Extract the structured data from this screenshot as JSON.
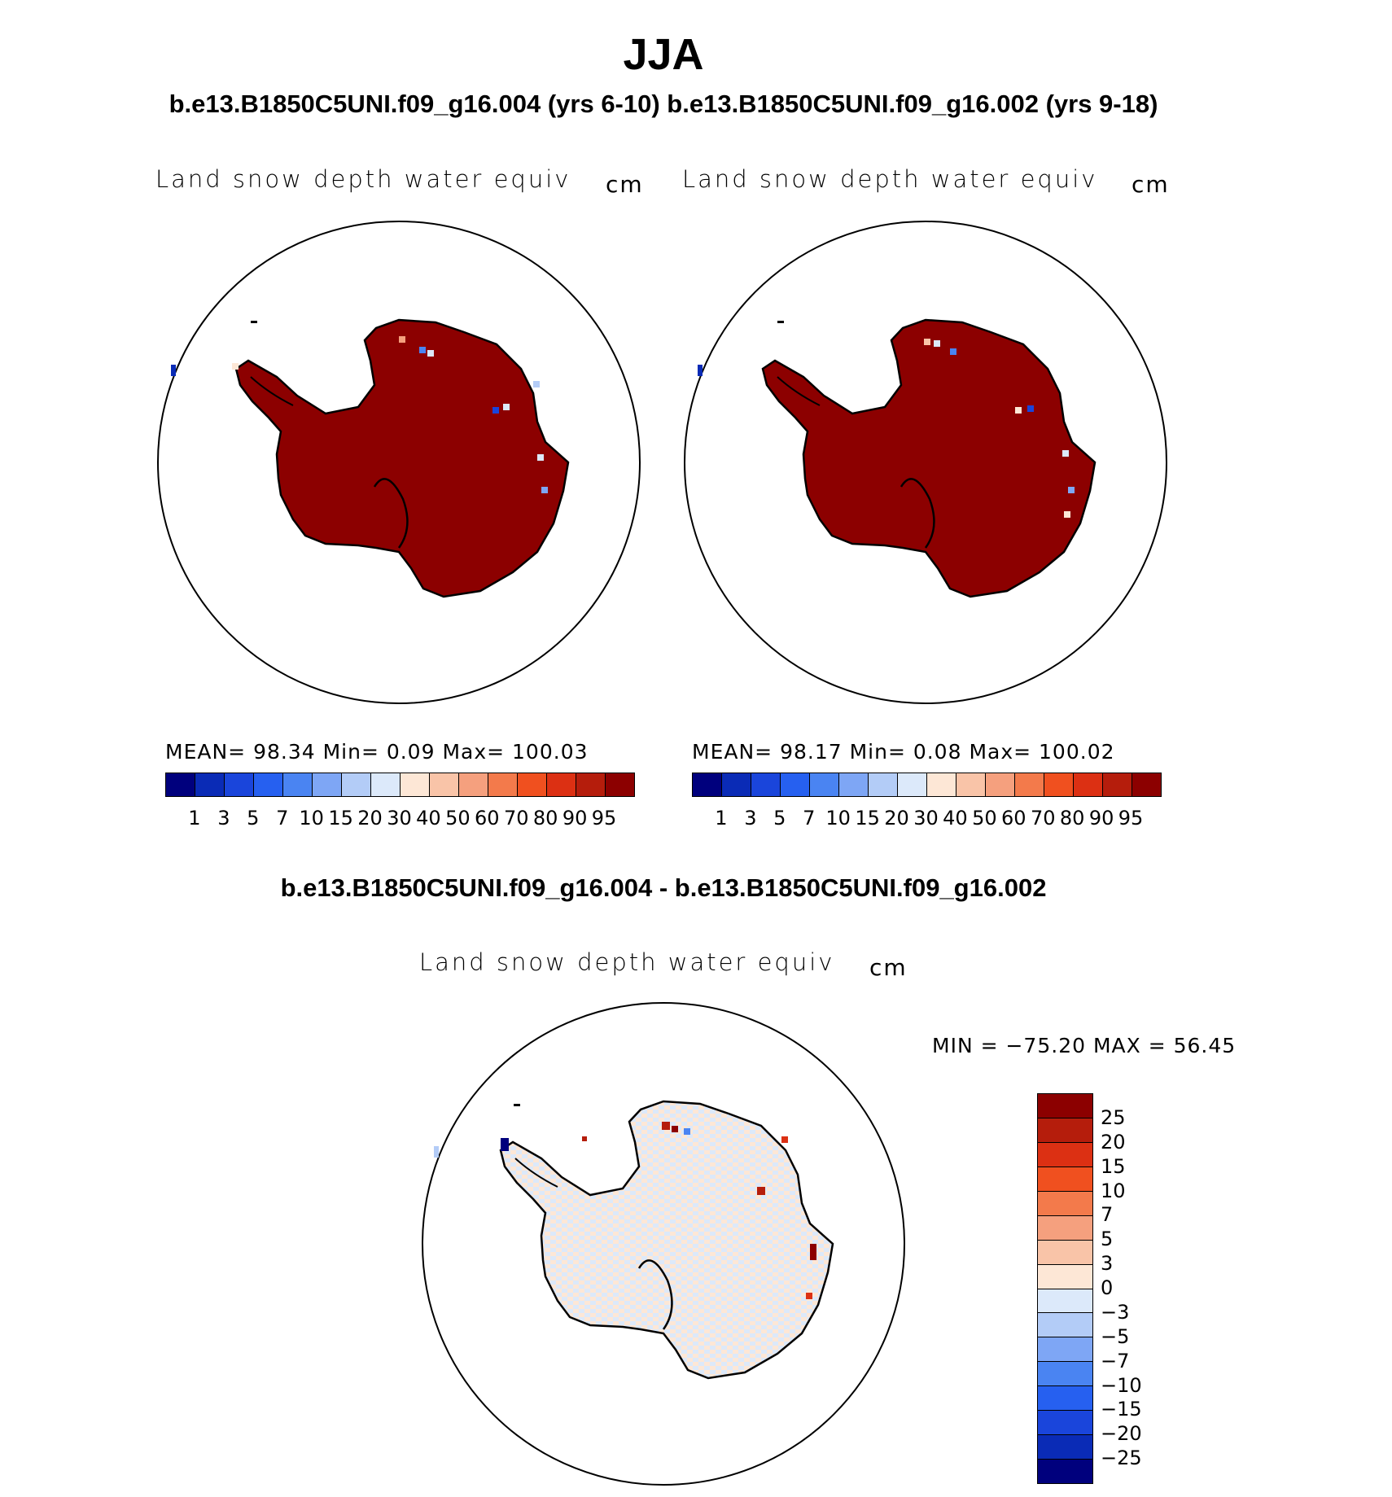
{
  "title": "JJA",
  "panel_header": "b.e13.B1850C5UNI.f09_g16.004 (yrs 6-10) b.e13.B1850C5UNI.f09_g16.002 (yrs 9-18)",
  "panels": [
    {
      "variable": "Land snow depth water equiv",
      "units": "cm",
      "stats": "MEAN=   98.34   Min=     0.09    Max=  100.03"
    },
    {
      "variable": "Land snow depth water equiv",
      "units": "cm",
      "stats": "MEAN=   98.17   Min=     0.08    Max=  100.02"
    }
  ],
  "abs_colorbar": {
    "labels": [
      "1",
      "3",
      "5",
      "7",
      "10",
      "15",
      "20",
      "30",
      "40",
      "50",
      "60",
      "70",
      "80",
      "90",
      "95"
    ],
    "colors": [
      "#00007d",
      "#0a2bb6",
      "#1a45db",
      "#2660f0",
      "#4a84f2",
      "#7ea6f5",
      "#b3ccf7",
      "#dce9fa",
      "#fde7d6",
      "#f9c4a8",
      "#f5a07e",
      "#f37a4b",
      "#f0501f",
      "#dc3013",
      "#b51d0c",
      "#8c0000"
    ]
  },
  "diff": {
    "header": "b.e13.B1850C5UNI.f09_g16.004 - b.e13.B1850C5UNI.f09_g16.002",
    "variable": "Land snow depth water equiv",
    "units": "cm",
    "minmax": "MIN = −75.20  MAX =   56.45",
    "colorbar": {
      "labels": [
        "25",
        "20",
        "15",
        "10",
        "7",
        "5",
        "3",
        "0",
        "−3",
        "−5",
        "−7",
        "−10",
        "−15",
        "−20",
        "−25"
      ],
      "colors": [
        "#8c0000",
        "#b51d0c",
        "#dc3013",
        "#f0501f",
        "#f37a4b",
        "#f5a07e",
        "#f9c4a8",
        "#fde7d6",
        "#dce9fa",
        "#b3ccf7",
        "#7ea6f5",
        "#4a84f2",
        "#2660f0",
        "#1a45db",
        "#0a2bb6",
        "#00007d"
      ]
    }
  },
  "colors": {
    "land_full": "#8c0000",
    "diff_pos": "#fde7d6",
    "diff_neg": "#dce9fa",
    "coast": "#000000"
  }
}
